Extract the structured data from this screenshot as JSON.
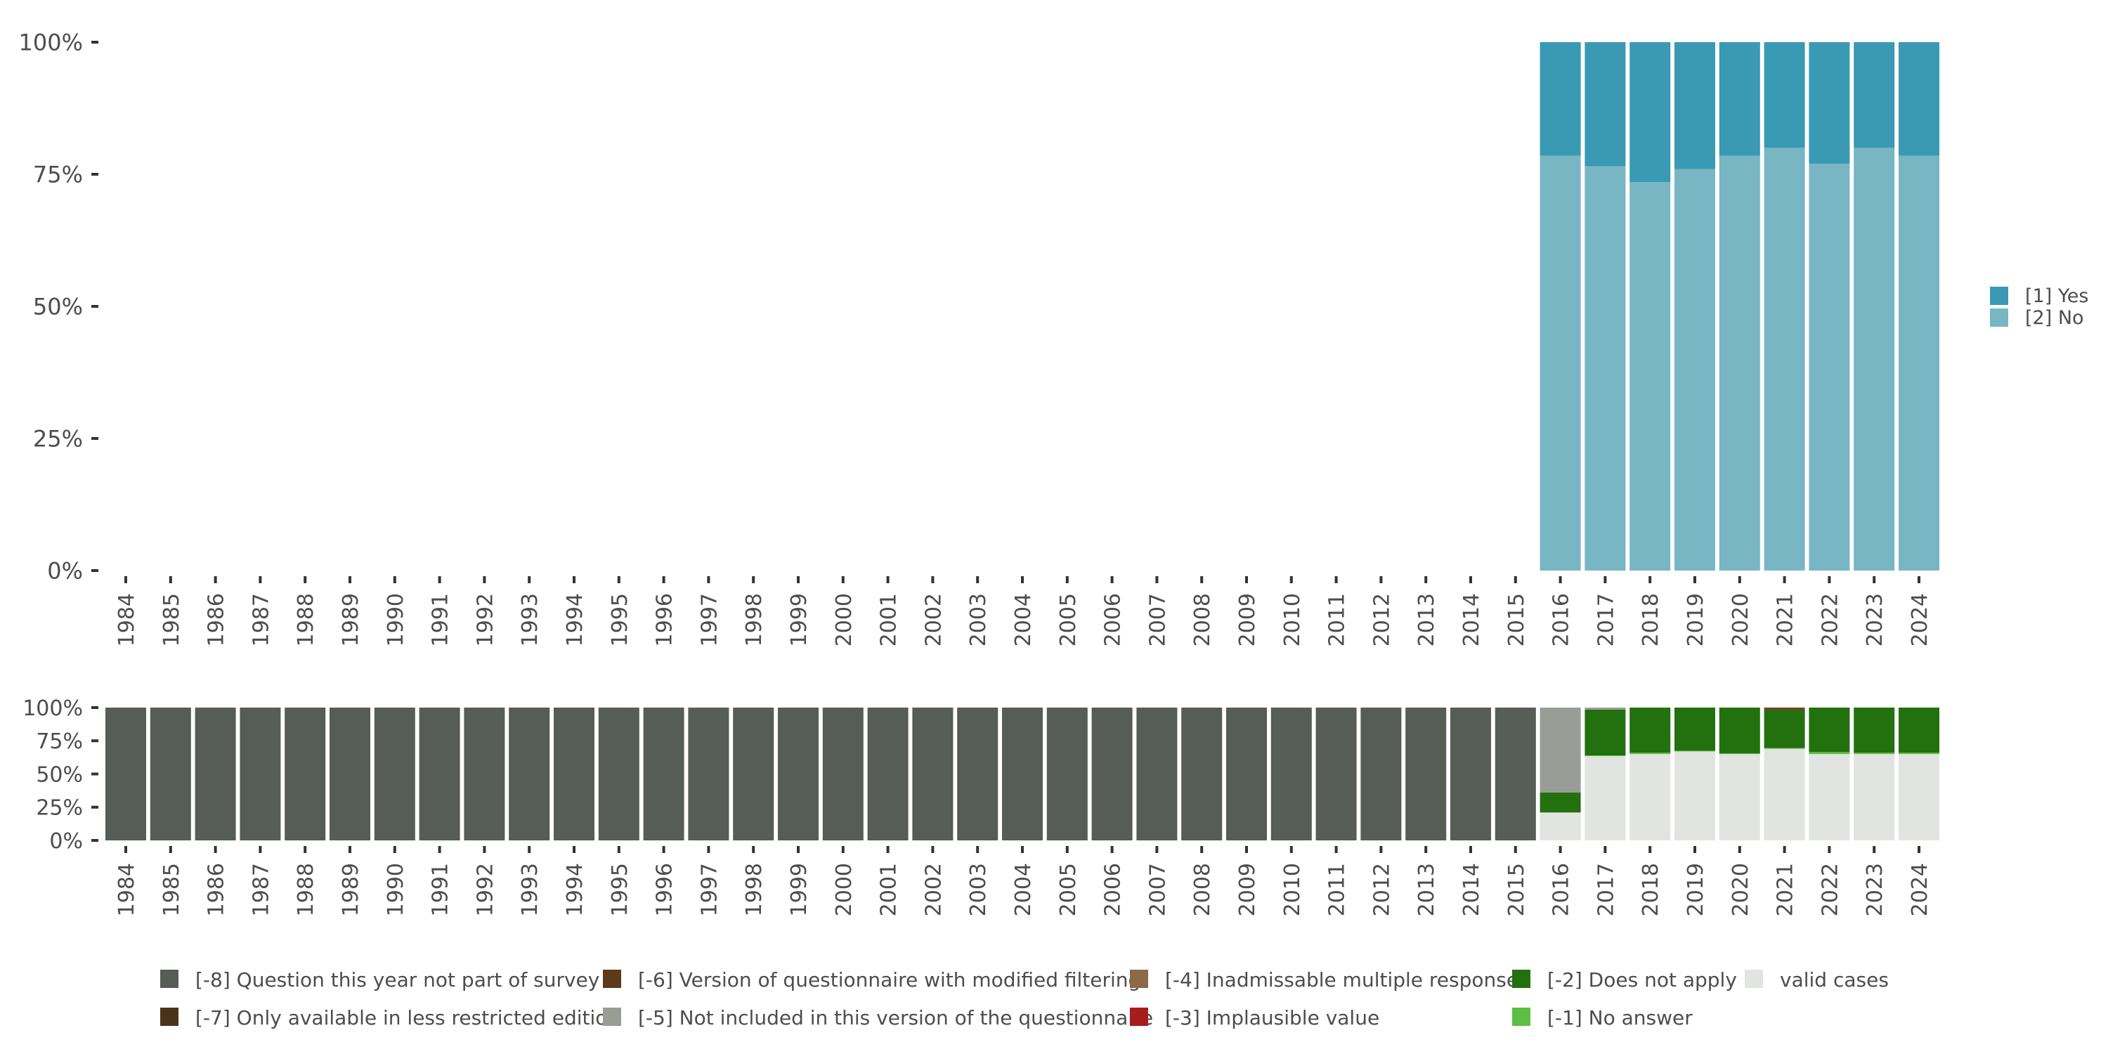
{
  "chart_data": [
    {
      "type": "bar",
      "stacked": true,
      "normalized": true,
      "categories": [
        "1984",
        "1985",
        "1986",
        "1987",
        "1988",
        "1989",
        "1990",
        "1991",
        "1992",
        "1993",
        "1994",
        "1995",
        "1996",
        "1997",
        "1998",
        "1999",
        "2000",
        "2001",
        "2002",
        "2003",
        "2004",
        "2005",
        "2006",
        "2007",
        "2008",
        "2009",
        "2010",
        "2011",
        "2012",
        "2013",
        "2014",
        "2015",
        "2016",
        "2017",
        "2018",
        "2019",
        "2020",
        "2021",
        "2022",
        "2023",
        "2024"
      ],
      "ylim": [
        0,
        100
      ],
      "y_ticks": [
        "0%",
        "25%",
        "50%",
        "75%",
        "100%"
      ],
      "legend_position": "right",
      "series": [
        {
          "name": "[2] No",
          "color": "#78b6c4",
          "values": [
            null,
            null,
            null,
            null,
            null,
            null,
            null,
            null,
            null,
            null,
            null,
            null,
            null,
            null,
            null,
            null,
            null,
            null,
            null,
            null,
            null,
            null,
            null,
            null,
            null,
            null,
            null,
            null,
            null,
            null,
            null,
            null,
            78.5,
            76.5,
            73.5,
            76,
            78.5,
            80,
            77,
            80,
            78.5
          ]
        },
        {
          "name": "[1] Yes",
          "color": "#3a99b3",
          "values": [
            null,
            null,
            null,
            null,
            null,
            null,
            null,
            null,
            null,
            null,
            null,
            null,
            null,
            null,
            null,
            null,
            null,
            null,
            null,
            null,
            null,
            null,
            null,
            null,
            null,
            null,
            null,
            null,
            null,
            null,
            null,
            null,
            21.5,
            23.5,
            26.5,
            24,
            21.5,
            20,
            23,
            20,
            21.5
          ]
        }
      ]
    },
    {
      "type": "bar",
      "stacked": true,
      "normalized": true,
      "categories": [
        "1984",
        "1985",
        "1986",
        "1987",
        "1988",
        "1989",
        "1990",
        "1991",
        "1992",
        "1993",
        "1994",
        "1995",
        "1996",
        "1997",
        "1998",
        "1999",
        "2000",
        "2001",
        "2002",
        "2003",
        "2004",
        "2005",
        "2006",
        "2007",
        "2008",
        "2009",
        "2010",
        "2011",
        "2012",
        "2013",
        "2014",
        "2015",
        "2016",
        "2017",
        "2018",
        "2019",
        "2020",
        "2021",
        "2022",
        "2023",
        "2024"
      ],
      "ylim": [
        0,
        100
      ],
      "y_ticks": [
        "0%",
        "25%",
        "50%",
        "75%",
        "100%"
      ],
      "legend_position": "bottom",
      "series": [
        {
          "name": "valid cases",
          "color": "#e1e4e0",
          "values": [
            0,
            0,
            0,
            0,
            0,
            0,
            0,
            0,
            0,
            0,
            0,
            0,
            0,
            0,
            0,
            0,
            0,
            0,
            0,
            0,
            0,
            0,
            0,
            0,
            0,
            0,
            0,
            0,
            0,
            0,
            0,
            0,
            21,
            63.5,
            65,
            67,
            65,
            69,
            65,
            65,
            65
          ]
        },
        {
          "name": "[-1] No answer",
          "color": "#5cbf45",
          "values": [
            0,
            0,
            0,
            0,
            0,
            0,
            0,
            0,
            0,
            0,
            0,
            0,
            0,
            0,
            0,
            0,
            0,
            0,
            0,
            0,
            0,
            0,
            0,
            0,
            0,
            0,
            0,
            0,
            0,
            0,
            0,
            0,
            0,
            0.5,
            1,
            0.5,
            0.5,
            0.5,
            1.5,
            1,
            1
          ]
        },
        {
          "name": "[-2] Does not apply",
          "color": "#23700f",
          "values": [
            0,
            0,
            0,
            0,
            0,
            0,
            0,
            0,
            0,
            0,
            0,
            0,
            0,
            0,
            0,
            0,
            0,
            0,
            0,
            0,
            0,
            0,
            0,
            0,
            0,
            0,
            0,
            0,
            0,
            0,
            0,
            0,
            15,
            34.5,
            34,
            32.5,
            34.5,
            29.5,
            33.5,
            34,
            34
          ]
        },
        {
          "name": "[-3] Implausible value",
          "color": "#a81c1c",
          "values": [
            0,
            0,
            0,
            0,
            0,
            0,
            0,
            0,
            0,
            0,
            0,
            0,
            0,
            0,
            0,
            0,
            0,
            0,
            0,
            0,
            0,
            0,
            0,
            0,
            0,
            0,
            0,
            0,
            0,
            0,
            0,
            0,
            0,
            0,
            0,
            0,
            0,
            1,
            0,
            0,
            0
          ]
        },
        {
          "name": "[-4] Inadmissable multiple response",
          "color": "#8c6a47",
          "values": [
            0,
            0,
            0,
            0,
            0,
            0,
            0,
            0,
            0,
            0,
            0,
            0,
            0,
            0,
            0,
            0,
            0,
            0,
            0,
            0,
            0,
            0,
            0,
            0,
            0,
            0,
            0,
            0,
            0,
            0,
            0,
            0,
            0,
            0,
            0,
            0,
            0,
            0,
            0,
            0,
            0
          ]
        },
        {
          "name": "[-5] Not included in this version of the questionnaire",
          "color": "#999d96",
          "values": [
            0,
            0,
            0,
            0,
            0,
            0,
            0,
            0,
            0,
            0,
            0,
            0,
            0,
            0,
            0,
            0,
            0,
            0,
            0,
            0,
            0,
            0,
            0,
            0,
            0,
            0,
            0,
            0,
            0,
            0,
            0,
            0,
            64,
            1.5,
            0,
            0,
            0,
            0,
            0,
            0,
            0
          ]
        },
        {
          "name": "[-6] Version of questionnaire with modified filtering",
          "color": "#5c3a1a",
          "values": [
            0,
            0,
            0,
            0,
            0,
            0,
            0,
            0,
            0,
            0,
            0,
            0,
            0,
            0,
            0,
            0,
            0,
            0,
            0,
            0,
            0,
            0,
            0,
            0,
            0,
            0,
            0,
            0,
            0,
            0,
            0,
            0,
            0,
            0,
            0,
            0,
            0,
            0,
            0,
            0,
            0
          ]
        },
        {
          "name": "[-7] Only available in less restricted edition",
          "color": "#4a3319",
          "values": [
            0,
            0,
            0,
            0,
            0,
            0,
            0,
            0,
            0,
            0,
            0,
            0,
            0,
            0,
            0,
            0,
            0,
            0,
            0,
            0,
            0,
            0,
            0,
            0,
            0,
            0,
            0,
            0,
            0,
            0,
            0,
            0,
            0,
            0,
            0,
            0,
            0,
            0,
            0,
            0,
            0
          ]
        },
        {
          "name": "[-8] Question this year not part of survey",
          "color": "#565c56",
          "values": [
            100,
            100,
            100,
            100,
            100,
            100,
            100,
            100,
            100,
            100,
            100,
            100,
            100,
            100,
            100,
            100,
            100,
            100,
            100,
            100,
            100,
            100,
            100,
            100,
            100,
            100,
            100,
            100,
            100,
            100,
            100,
            100,
            0,
            0,
            0,
            0,
            0,
            0,
            0,
            0,
            0
          ]
        }
      ],
      "legend_order": [
        "[-8] Question this year not part of survey",
        "[-7] Only available in less restricted edition",
        "[-6] Version of questionnaire with modified filtering",
        "[-5] Not included in this version of the questionnaire",
        "[-4] Inadmissable multiple response",
        "[-3] Implausible value",
        "[-2] Does not apply",
        "[-1] No answer",
        "valid cases"
      ]
    }
  ]
}
